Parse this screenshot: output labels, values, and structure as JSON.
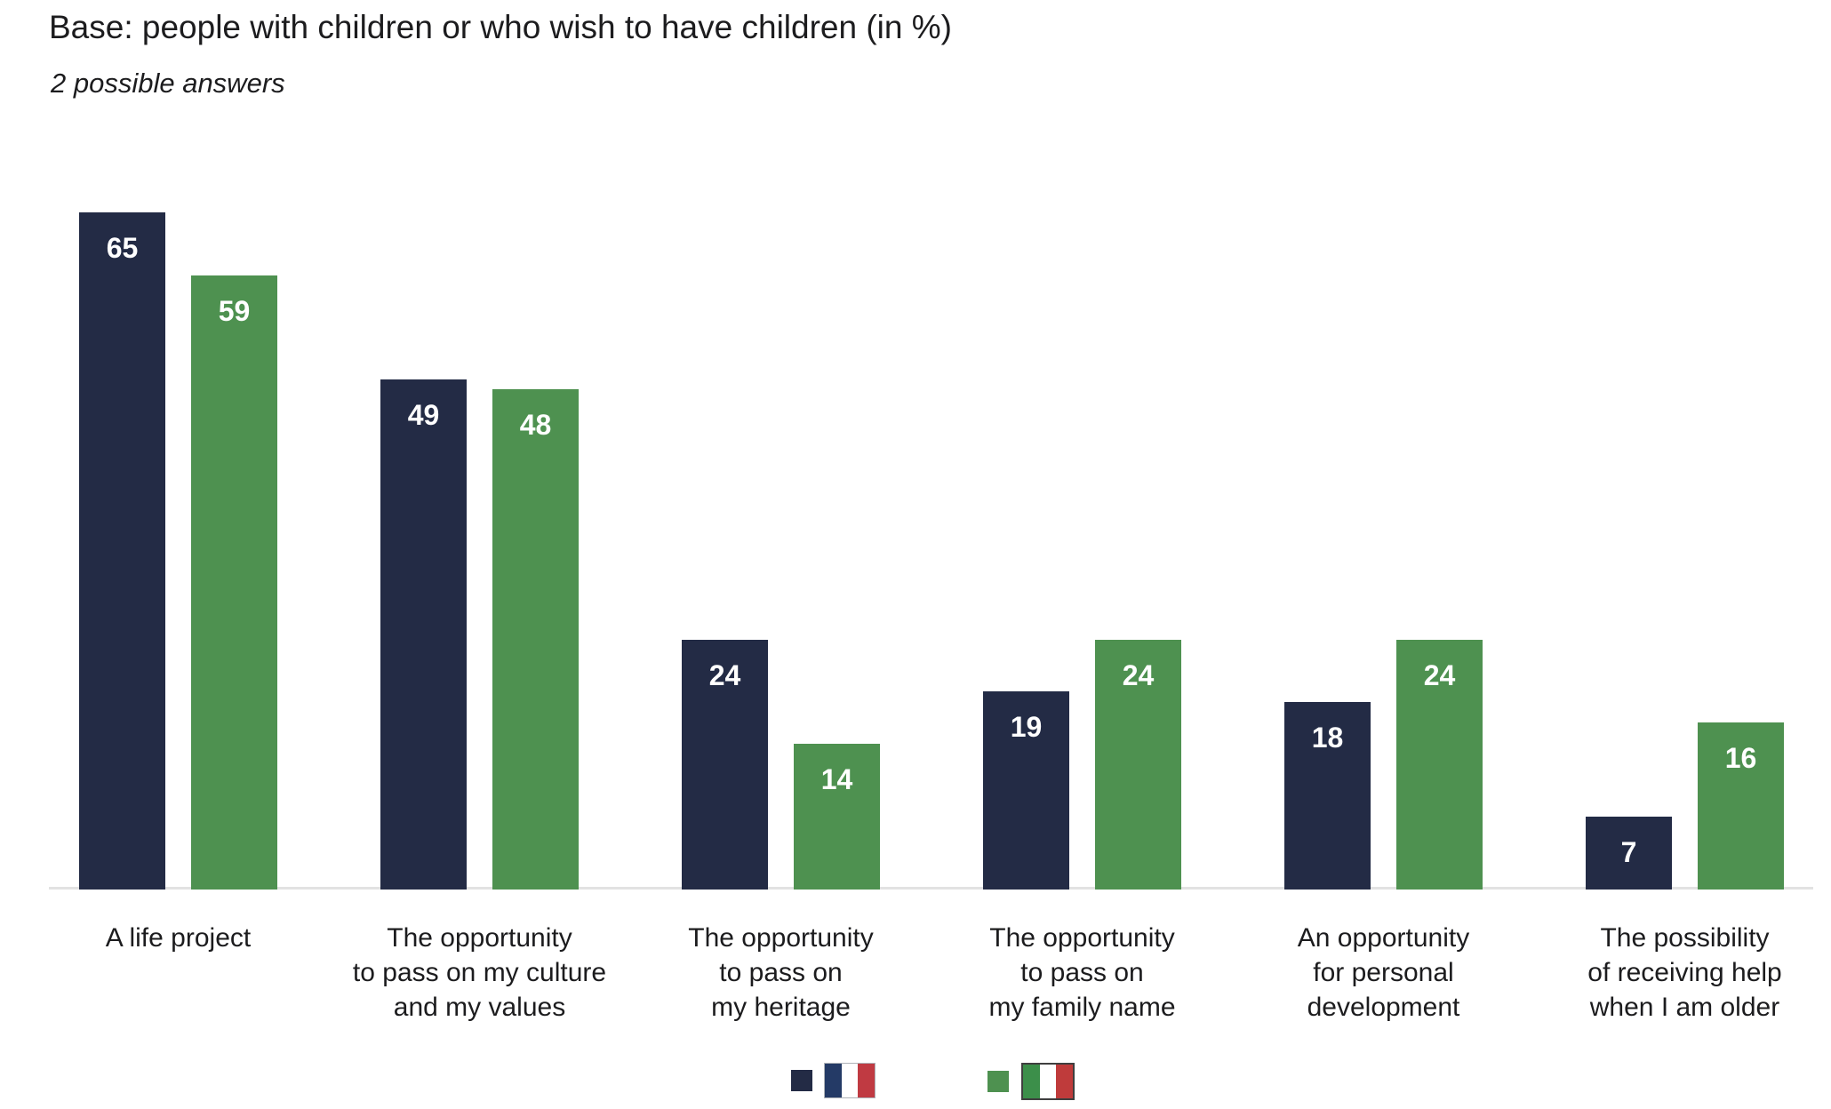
{
  "header": {
    "title": "Base: people with children or who wish to have children (in %)",
    "subtitle": "2 possible answers"
  },
  "colors": {
    "france_bar": "#232b45",
    "italy_bar": "#4e9150",
    "baseline": "#e2e2e2",
    "value_label": "#ffffff",
    "text": "#1c1c1e"
  },
  "legend": [
    {
      "name": "France",
      "swatch": "#232b45",
      "flag": "france"
    },
    {
      "name": "Italy",
      "swatch": "#4e9150",
      "flag": "italy"
    }
  ],
  "flags": {
    "france": [
      "#243a66",
      "#ffffff",
      "#c03a42"
    ],
    "italy": [
      "#3c8f4a",
      "#ffffff",
      "#bf3b3b"
    ]
  },
  "chart_data": {
    "type": "bar",
    "title": "Base: people with children or who wish to have children (in %)",
    "subtitle": "2 possible answers",
    "categories": [
      [
        "A life project"
      ],
      [
        "The opportunity",
        "to pass on my culture",
        "and my values"
      ],
      [
        "The opportunity",
        "to pass on",
        "my heritage"
      ],
      [
        "The opportunity",
        "to pass on",
        "my family name"
      ],
      [
        "An opportunity",
        "for personal",
        "development"
      ],
      [
        "The possibility",
        "of receiving help",
        "when I am older"
      ]
    ],
    "series": [
      {
        "name": "France",
        "color": "#232b45",
        "values": [
          65,
          49,
          24,
          19,
          18,
          7
        ]
      },
      {
        "name": "Italy",
        "color": "#4e9150",
        "values": [
          59,
          48,
          14,
          24,
          24,
          16
        ]
      }
    ],
    "unit": "%",
    "xlabel": "",
    "ylabel": "",
    "ylim": [
      0,
      68
    ],
    "grid": false,
    "value_labels": true,
    "legend_position": "bottom"
  }
}
